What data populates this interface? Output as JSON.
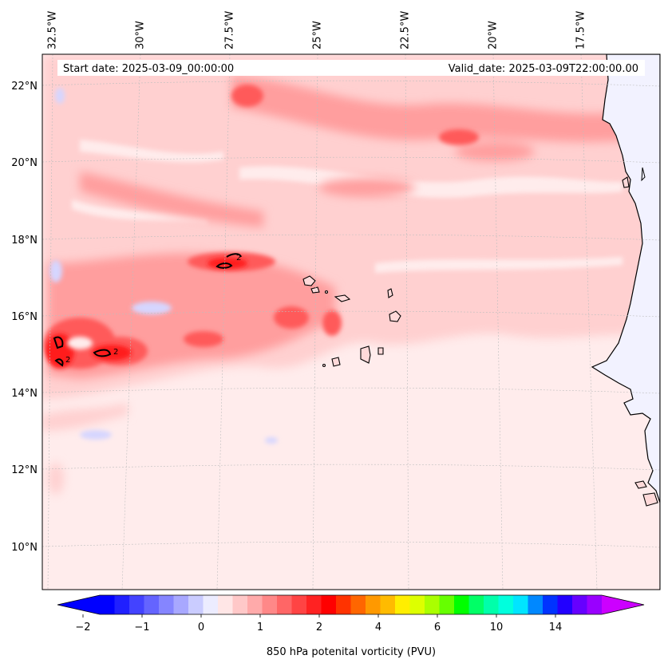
{
  "header": {
    "start_date": "Start date: 2025-03-09_00:00:00",
    "valid_date": "Valid_date: 2025-03-09T22:00:00.00"
  },
  "map": {
    "longitude_labels": [
      "32.5°W",
      "30°W",
      "27.5°W",
      "25°W",
      "22.5°W",
      "20°W",
      "17.5°W"
    ],
    "latitude_labels": [
      "22°N",
      "20°N",
      "18°N",
      "16°N",
      "14°N",
      "12°N",
      "10°N"
    ],
    "contour_labels": [
      "2",
      "2",
      "2"
    ],
    "colors": {
      "ocean_base": "#ffecec",
      "level_light": "#ffd0d0",
      "level_mid": "#ff9e9e",
      "level_strong": "#ff5a5a",
      "level_peak": "#ff1a1a",
      "negative": "#dcdcff",
      "land": "#f2f2ff"
    }
  },
  "colorbar": {
    "ticks": [
      "−2",
      "−1",
      "0",
      "1",
      "2",
      "4",
      "6",
      "10",
      "14"
    ],
    "label": "850 hPa potenital vorticity (PVU)",
    "colors": [
      "#0000ff",
      "#2020ff",
      "#4343ff",
      "#6464ff",
      "#8585ff",
      "#a8a8ff",
      "#caccff",
      "#ececff",
      "#ffe6e6",
      "#ffc8c8",
      "#ffaaaa",
      "#ff8888",
      "#ff6666",
      "#ff4444",
      "#ff2222",
      "#ff0000",
      "#ff3300",
      "#ff6600",
      "#ff9900",
      "#ffbb00",
      "#ffee00",
      "#ddff00",
      "#aaff00",
      "#66ff00",
      "#00ff00",
      "#00ff66",
      "#00ffaa",
      "#00ffdd",
      "#00e5ff",
      "#0088ff",
      "#0033ff",
      "#2200ff",
      "#6600ff",
      "#9900ff"
    ],
    "extend_low_color": "#0000ff",
    "extend_high_color": "#cc00ff"
  }
}
